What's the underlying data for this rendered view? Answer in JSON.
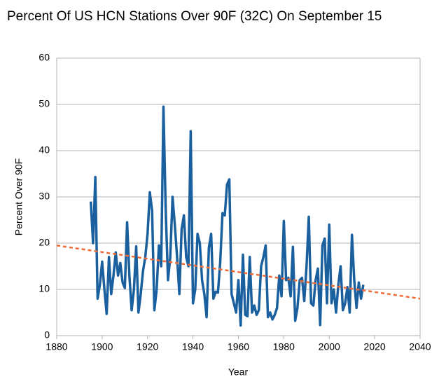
{
  "chart_data": {
    "type": "line",
    "title": "Percent Of US HCN Stations Over 90F (32C) On September 15",
    "xlabel": "Year",
    "ylabel": "Percent Over 90F",
    "xlim": [
      1880,
      2040
    ],
    "xticks": [
      1880,
      1900,
      1920,
      1940,
      1960,
      1980,
      2000,
      2020,
      2040
    ],
    "ylim": [
      0,
      60
    ],
    "yticks": [
      0,
      10,
      20,
      30,
      40,
      50,
      60
    ],
    "grid": true,
    "series": [
      {
        "color": "#1b609e",
        "dashed": false,
        "x": [
          1895,
          1896,
          1897,
          1898,
          1899,
          1900,
          1901,
          1902,
          1903,
          1904,
          1905,
          1906,
          1907,
          1908,
          1909,
          1910,
          1911,
          1912,
          1913,
          1914,
          1915,
          1916,
          1917,
          1918,
          1919,
          1920,
          1921,
          1922,
          1923,
          1924,
          1925,
          1926,
          1927,
          1928,
          1929,
          1930,
          1931,
          1932,
          1933,
          1934,
          1935,
          1936,
          1937,
          1938,
          1939,
          1940,
          1941,
          1942,
          1943,
          1944,
          1945,
          1946,
          1947,
          1948,
          1949,
          1950,
          1951,
          1952,
          1953,
          1954,
          1955,
          1956,
          1957,
          1958,
          1959,
          1960,
          1961,
          1962,
          1963,
          1964,
          1965,
          1966,
          1967,
          1968,
          1969,
          1970,
          1971,
          1972,
          1973,
          1974,
          1975,
          1976,
          1977,
          1978,
          1979,
          1980,
          1981,
          1982,
          1983,
          1984,
          1985,
          1986,
          1987,
          1988,
          1989,
          1990,
          1991,
          1992,
          1993,
          1994,
          1995,
          1996,
          1997,
          1998,
          1999,
          2000,
          2001,
          2002,
          2003,
          2004,
          2005,
          2006,
          2007,
          2008,
          2009,
          2010,
          2011,
          2012,
          2013,
          2014,
          2015
        ],
        "values": [
          29,
          20,
          34.3,
          8,
          11,
          16,
          10,
          4.7,
          17,
          9,
          13,
          18,
          13,
          15.7,
          11.5,
          10.3,
          24.5,
          13,
          5.5,
          10,
          19.3,
          5,
          9,
          14,
          17,
          22,
          31,
          27,
          5.5,
          10,
          19.5,
          15,
          49.5,
          27,
          12,
          17,
          30,
          24,
          17,
          9,
          23,
          26,
          17,
          15,
          44.2,
          7,
          10,
          22,
          20,
          12,
          9,
          4,
          19,
          22,
          8,
          9.5,
          9.3,
          16,
          26.5,
          26,
          32.7,
          33.8,
          9,
          7,
          5,
          12,
          2.2,
          17.5,
          4.5,
          4.2,
          17,
          5,
          6.5,
          4.5,
          5.5,
          15,
          17,
          19.5,
          4,
          5,
          3.5,
          4.5,
          6,
          13,
          8.5,
          24.8,
          12,
          12.5,
          8.5,
          19.2,
          3.2,
          6,
          12,
          12.5,
          7.5,
          15,
          25.7,
          7,
          6.5,
          12,
          14.5,
          2.3,
          19.5,
          21,
          7,
          24,
          7,
          10,
          5,
          11,
          15,
          5.5,
          7,
          10.5,
          5,
          21.8,
          12,
          6,
          11.5,
          8,
          11
        ]
      },
      {
        "color": "#f06a35",
        "dashed": true,
        "x": [
          1880,
          2040
        ],
        "values": [
          19.5,
          8
        ]
      }
    ]
  }
}
